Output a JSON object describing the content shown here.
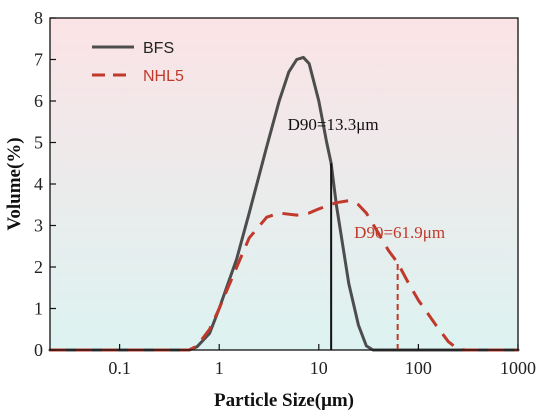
{
  "chart_data": {
    "type": "line",
    "xlabel": "Particle Size(μm)",
    "ylabel": "Volume(%)",
    "xscale": "log",
    "xlim": [
      0.02,
      1000
    ],
    "ylim": [
      0,
      8
    ],
    "x_ticks": [
      0.1,
      1,
      10,
      100,
      1000
    ],
    "x_tick_labels": [
      "0.1",
      "1",
      "10",
      "100",
      "1000"
    ],
    "y_ticks": [
      0,
      1,
      2,
      3,
      4,
      5,
      6,
      7,
      8
    ],
    "y_tick_labels": [
      "0",
      "1",
      "2",
      "3",
      "4",
      "5",
      "6",
      "7",
      "8"
    ],
    "legend_position": "top-left",
    "background": {
      "top_color": "#fbe3e6",
      "bottom_color": "#dcf3f1"
    },
    "series": [
      {
        "name": "BFS",
        "color": "#4d4d4d",
        "style": "solid",
        "points": [
          [
            0.02,
            0
          ],
          [
            0.5,
            0
          ],
          [
            0.6,
            0.08
          ],
          [
            0.8,
            0.4
          ],
          [
            1.0,
            1.0
          ],
          [
            1.5,
            2.2
          ],
          [
            2.0,
            3.3
          ],
          [
            3.0,
            4.9
          ],
          [
            4.0,
            6.0
          ],
          [
            5.0,
            6.7
          ],
          [
            6.0,
            7.0
          ],
          [
            7.0,
            7.05
          ],
          [
            8.0,
            6.9
          ],
          [
            10.0,
            6.0
          ],
          [
            12.0,
            5.0
          ],
          [
            13.3,
            4.5
          ],
          [
            15.0,
            3.5
          ],
          [
            20.0,
            1.6
          ],
          [
            25.0,
            0.6
          ],
          [
            30.0,
            0.1
          ],
          [
            35.0,
            0
          ],
          [
            1000,
            0
          ]
        ]
      },
      {
        "name": "NHL5",
        "color": "#c0392b",
        "style": "dashed",
        "points": [
          [
            0.02,
            0
          ],
          [
            0.5,
            0
          ],
          [
            0.6,
            0.1
          ],
          [
            0.8,
            0.5
          ],
          [
            1.0,
            1.0
          ],
          [
            1.5,
            2.0
          ],
          [
            2.0,
            2.7
          ],
          [
            3.0,
            3.2
          ],
          [
            4.0,
            3.3
          ],
          [
            6.0,
            3.25
          ],
          [
            8.0,
            3.3
          ],
          [
            10.0,
            3.4
          ],
          [
            15.0,
            3.55
          ],
          [
            20.0,
            3.6
          ],
          [
            25.0,
            3.5
          ],
          [
            30.0,
            3.3
          ],
          [
            40.0,
            2.8
          ],
          [
            50.0,
            2.4
          ],
          [
            61.9,
            2.1
          ],
          [
            80.0,
            1.6
          ],
          [
            100.0,
            1.2
          ],
          [
            150.0,
            0.6
          ],
          [
            200.0,
            0.2
          ],
          [
            250.0,
            0.02
          ],
          [
            300.0,
            0
          ],
          [
            1000,
            0
          ]
        ]
      }
    ],
    "annotations": [
      {
        "text": "D90=13.3μm",
        "x": 13.3,
        "y_top": 4.5,
        "color": "#111111",
        "label_anchor": [
          13.3,
          5.3
        ]
      },
      {
        "text": "D90=61.9μm",
        "x": 61.9,
        "y_top": 2.1,
        "color": "#c0392b",
        "label_anchor": [
          61.9,
          2.7
        ]
      }
    ]
  }
}
